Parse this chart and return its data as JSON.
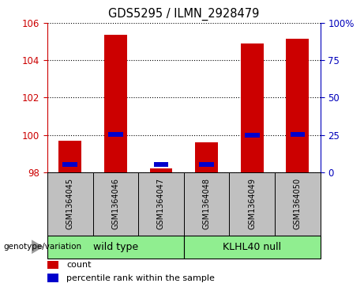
{
  "title": "GDS5295 / ILMN_2928479",
  "samples": [
    "GSM1364045",
    "GSM1364046",
    "GSM1364047",
    "GSM1364048",
    "GSM1364049",
    "GSM1364050"
  ],
  "count_values": [
    99.7,
    105.35,
    98.2,
    99.6,
    104.9,
    105.15
  ],
  "percentile_values": [
    5,
    25.5,
    5,
    5,
    25,
    25.5
  ],
  "ylim_left": [
    98,
    106
  ],
  "ylim_right": [
    0,
    100
  ],
  "yticks_left": [
    98,
    100,
    102,
    104,
    106
  ],
  "yticks_right": [
    0,
    25,
    50,
    75,
    100
  ],
  "groups": [
    {
      "label": "wild type",
      "indices": [
        0,
        1,
        2
      ],
      "color": "#90EE90"
    },
    {
      "label": "KLHL40 null",
      "indices": [
        3,
        4,
        5
      ],
      "color": "#90EE90"
    }
  ],
  "bar_color_red": "#CC0000",
  "bar_color_blue": "#0000CC",
  "bar_width": 0.5,
  "left_tick_color": "#CC0000",
  "right_tick_color": "#0000BB",
  "grid_color": "black",
  "xticklabel_bg": "#C0C0C0",
  "legend_items": [
    "count",
    "percentile rank within the sample"
  ],
  "genotype_label": "genotype/variation",
  "arrow_color": "#999999"
}
